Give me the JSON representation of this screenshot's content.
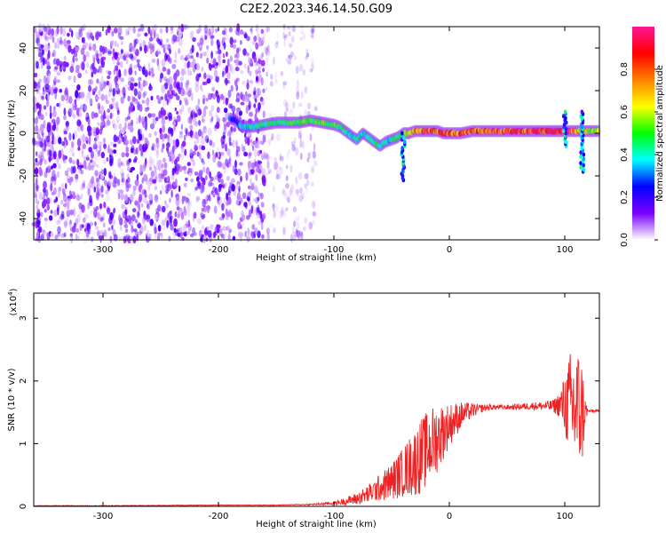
{
  "figure": {
    "title": "C2E2.2023.346.14.50.G09"
  },
  "chart_data": [
    {
      "type": "heatmap",
      "name": "spectrogram",
      "xlabel": "Height of straight line (km)",
      "ylabel": "Frequency (Hz)",
      "xlim": [
        -360,
        130
      ],
      "ylim": [
        -50,
        50
      ],
      "x_ticks": [
        -300,
        -200,
        -100,
        0,
        100
      ],
      "x_tick_labels": [
        "-300",
        "-200",
        "-100",
        "0",
        "100"
      ],
      "y_ticks": [
        -40,
        -20,
        0,
        20,
        40
      ],
      "y_tick_labels": [
        "-40",
        "-20",
        "0",
        "20",
        "40"
      ],
      "grid": false,
      "colorbar": {
        "label": "Normalized spectral amplitude",
        "range": [
          0,
          1
        ],
        "ticks": [
          0.0,
          0.2,
          0.4,
          0.6,
          0.8
        ],
        "tick_labels": [
          "0.0",
          "0.2",
          "0.4",
          "0.6",
          "0.8"
        ],
        "colormap": [
          "#ffffff",
          "#7a00ff",
          "#0000ff",
          "#00ffff",
          "#00ff00",
          "#ffff00",
          "#ff8000",
          "#ff0000",
          "#ff1493"
        ]
      },
      "noise_region": {
        "x_range": [
          -360,
          -115
        ],
        "frequency_range": [
          -50,
          50
        ],
        "dense_until": -160,
        "amplitude": [
          0.02,
          0.18
        ]
      },
      "signal_track": {
        "x": [
          -190,
          -185,
          -180,
          -170,
          -160,
          -150,
          -140,
          -130,
          -120,
          -110,
          -100,
          -95,
          -90,
          -85,
          -80,
          -75,
          -70,
          -65,
          -60,
          -55,
          -50,
          -45,
          -40,
          -35,
          -30,
          -25,
          -20,
          -15,
          -10,
          -5,
          0,
          10,
          20,
          30,
          40,
          50,
          60,
          70,
          80,
          90,
          100,
          105,
          110,
          115,
          120,
          125,
          130
        ],
        "frequency": [
          7,
          6,
          3,
          3,
          4,
          5,
          5,
          5,
          6,
          5,
          4,
          3,
          1,
          -1,
          -3,
          0,
          -2,
          -4,
          -6,
          -4,
          -3,
          -2,
          0,
          0,
          1,
          1,
          1,
          1,
          1,
          0,
          0,
          0,
          1,
          1,
          1,
          1,
          1,
          1,
          1,
          1,
          1,
          1,
          1,
          1,
          1,
          1,
          1
        ],
        "amplitude": [
          0.3,
          0.2,
          0.35,
          0.4,
          0.45,
          0.45,
          0.45,
          0.48,
          0.5,
          0.5,
          0.5,
          0.45,
          0.45,
          0.4,
          0.42,
          0.4,
          0.45,
          0.45,
          0.4,
          0.4,
          0.4,
          0.45,
          0.5,
          0.6,
          0.7,
          0.75,
          0.8,
          0.8,
          0.8,
          0.8,
          0.8,
          0.75,
          0.78,
          0.8,
          0.8,
          0.8,
          0.82,
          0.85,
          0.85,
          0.9,
          0.9,
          0.8,
          0.7,
          0.6,
          0.6,
          0.6,
          0.6
        ]
      },
      "spurs": [
        {
          "x": -40,
          "frequency_range": [
            -22,
            0
          ]
        },
        {
          "x": 100,
          "frequency_range": [
            -6,
            10
          ]
        },
        {
          "x": 115,
          "frequency_range": [
            -18,
            10
          ]
        }
      ]
    },
    {
      "type": "line",
      "name": "snr",
      "xlabel": "Height of straight line (km)",
      "ylabel": "SNR (10 * v/v)",
      "y_multiplier": "(x10",
      "y_multiplier_exponent": "4",
      "y_multiplier_close": ")",
      "xlim": [
        -360,
        130
      ],
      "ylim": [
        0,
        3.4
      ],
      "x_ticks": [
        -300,
        -200,
        -100,
        0,
        100
      ],
      "x_tick_labels": [
        "-300",
        "-200",
        "-100",
        "0",
        "100"
      ],
      "y_ticks": [
        0,
        1,
        2,
        3
      ],
      "y_tick_labels": [
        "0",
        "1",
        "2",
        "3"
      ],
      "grid": false,
      "color": "#ee2222",
      "series": [
        {
          "x": [
            -360,
            -300,
            -250,
            -200,
            -150,
            -120,
            -100,
            -90,
            -80,
            -70,
            -60,
            -50,
            -40,
            -30,
            -25,
            -20,
            -15,
            -10,
            -5,
            0,
            5,
            10,
            15,
            20,
            25,
            30,
            35,
            40,
            50,
            60,
            70,
            80,
            90,
            95,
            100,
            105,
            110,
            115,
            118,
            120,
            125,
            130
          ],
          "y": [
            0.01,
            0.01,
            0.015,
            0.02,
            0.02,
            0.03,
            0.05,
            0.08,
            0.12,
            0.2,
            0.3,
            0.4,
            0.55,
            0.7,
            0.8,
            0.9,
            1.0,
            1.1,
            1.2,
            1.3,
            1.38,
            1.45,
            1.5,
            1.53,
            1.55,
            1.57,
            1.58,
            1.58,
            1.58,
            1.59,
            1.6,
            1.6,
            1.6,
            1.62,
            1.62,
            1.6,
            1.55,
            1.5,
            1.52,
            1.52,
            1.52,
            1.52
          ],
          "noise": [
            0.005,
            0.005,
            0.005,
            0.005,
            0.005,
            0.01,
            0.03,
            0.06,
            0.1,
            0.15,
            0.22,
            0.3,
            0.4,
            0.55,
            0.6,
            0.6,
            0.6,
            0.55,
            0.45,
            0.35,
            0.28,
            0.22,
            0.16,
            0.12,
            0.08,
            0.06,
            0.05,
            0.04,
            0.04,
            0.05,
            0.06,
            0.07,
            0.1,
            0.2,
            0.5,
            0.9,
            1.1,
            0.9,
            0.2,
            0.02,
            0.02,
            0.02
          ]
        }
      ]
    }
  ]
}
